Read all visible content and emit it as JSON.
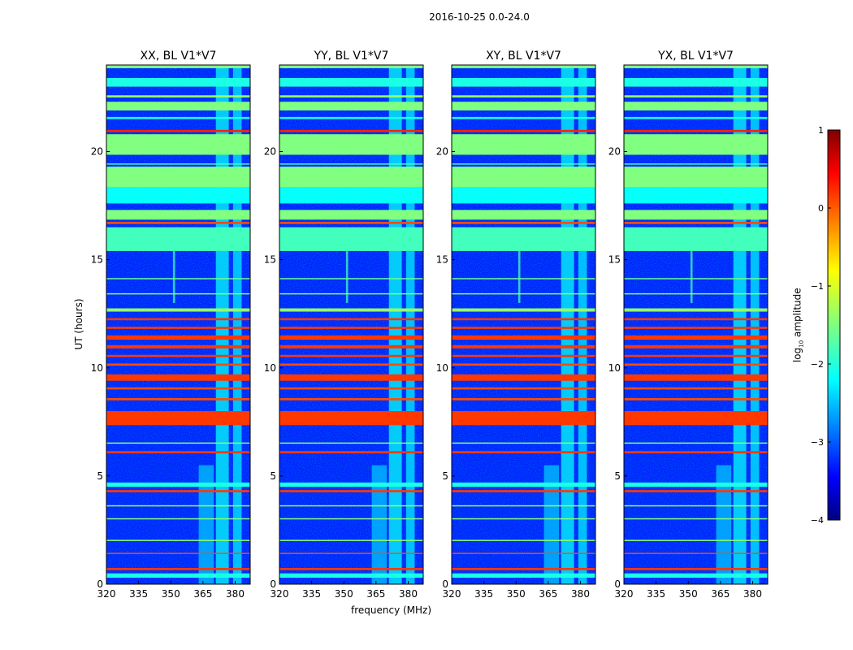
{
  "chart_data": {
    "type": "heatmap",
    "title": "2016-10-25 0.0-24.0",
    "xlabel": "frequency (MHz)",
    "ylabel": "UT (hours)",
    "xlim": [
      320,
      387
    ],
    "ylim": [
      0,
      24
    ],
    "xticks": [
      "320",
      "335",
      "350",
      "365",
      "380"
    ],
    "yticks": [
      "0",
      "5",
      "10",
      "15",
      "20"
    ],
    "colorbar": {
      "label": "log10 amplitude",
      "range": [
        -4,
        1
      ],
      "ticks": [
        "−4",
        "−3",
        "−2",
        "−1",
        "0",
        "1"
      ],
      "colormap": "jet"
    },
    "background_level": -3.2,
    "panels": [
      {
        "title": "XX, BL V1*V7"
      },
      {
        "title": "YY, BL V1*V7"
      },
      {
        "title": "XY, BL V1*V7"
      },
      {
        "title": "YX, BL V1*V7"
      }
    ],
    "horizontal_bands": [
      [
        23.85,
        24.0,
        -1.5
      ],
      [
        23.0,
        23.4,
        -2.0
      ],
      [
        22.5,
        22.6,
        -1.4
      ],
      [
        21.9,
        22.3,
        -1.5
      ],
      [
        21.5,
        21.6,
        -2.0
      ],
      [
        20.9,
        21.0,
        0.2
      ],
      [
        19.85,
        20.8,
        -1.5
      ],
      [
        19.4,
        19.45,
        -1.8
      ],
      [
        18.35,
        19.3,
        -1.5
      ],
      [
        17.6,
        18.35,
        -2.1
      ],
      [
        16.85,
        17.3,
        -1.5
      ],
      [
        16.65,
        16.75,
        0.0
      ],
      [
        15.4,
        16.5,
        -1.8
      ],
      [
        14.1,
        14.15,
        -1.6
      ],
      [
        13.4,
        13.45,
        -1.5
      ],
      [
        12.6,
        12.75,
        -1.4
      ],
      [
        12.2,
        12.3,
        0.1
      ],
      [
        11.8,
        11.9,
        0.1
      ],
      [
        11.3,
        11.5,
        0.1
      ],
      [
        10.9,
        11.05,
        0.1
      ],
      [
        10.5,
        10.6,
        0.1
      ],
      [
        10.1,
        10.2,
        0.0
      ],
      [
        9.4,
        9.7,
        0.1
      ],
      [
        9.0,
        9.1,
        0.0
      ],
      [
        8.5,
        8.6,
        0.0
      ],
      [
        7.35,
        8.0,
        0.1
      ],
      [
        6.5,
        6.55,
        -1.5
      ],
      [
        6.05,
        6.15,
        0.1
      ],
      [
        4.5,
        4.7,
        -2.0
      ],
      [
        4.25,
        4.35,
        0.1
      ],
      [
        3.6,
        3.65,
        -1.4
      ],
      [
        3.0,
        3.05,
        -1.5
      ],
      [
        2.0,
        2.05,
        -1.4
      ],
      [
        1.4,
        1.45,
        0.0
      ],
      [
        0.65,
        0.75,
        0.1
      ],
      [
        0.3,
        0.5,
        -2.0
      ]
    ],
    "vertical_bands": [
      [
        371,
        377,
        0,
        24,
        -2.1
      ],
      [
        379,
        383,
        0,
        24,
        -2.2
      ],
      [
        363,
        370,
        0,
        5.5,
        -2.4
      ],
      [
        351,
        352,
        13,
        15.5,
        -1.8
      ]
    ]
  }
}
